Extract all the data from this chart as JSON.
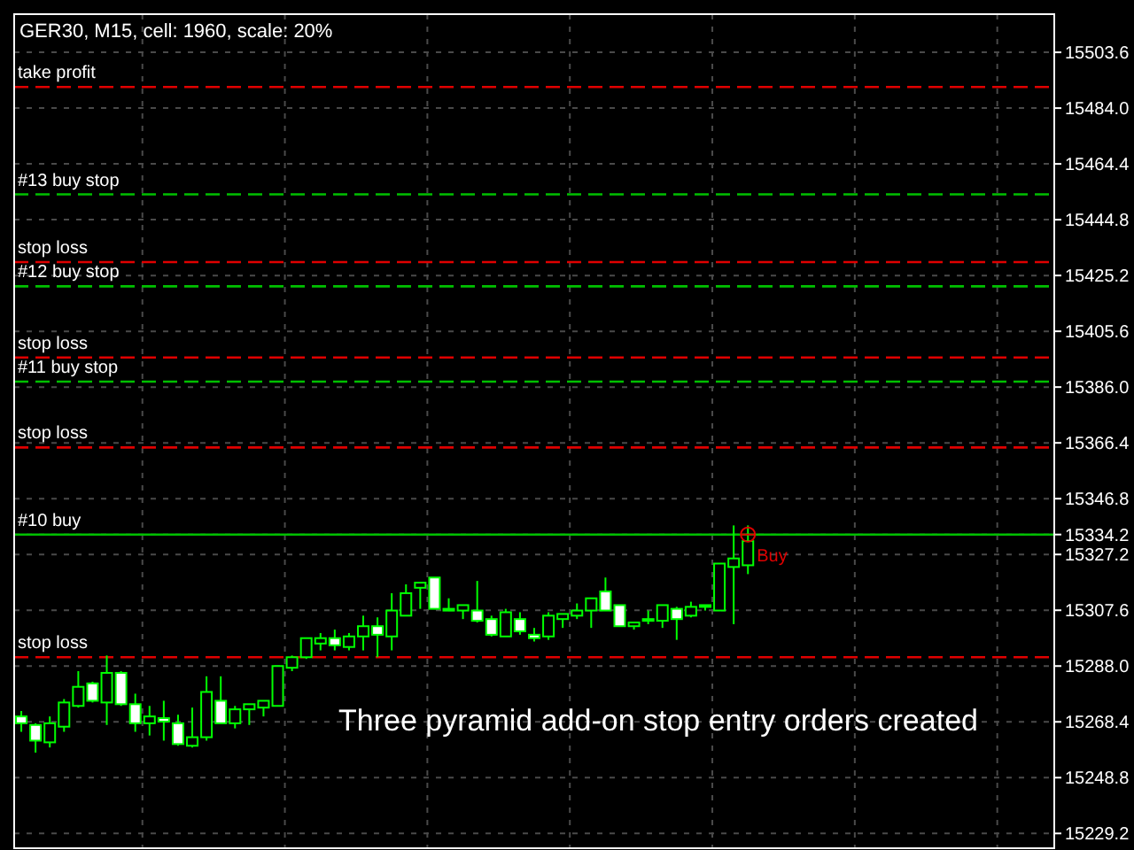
{
  "chart_data": {
    "type": "candlestick",
    "title": "GER30, M15, cell: 1960, scale: 20%",
    "categories": [
      null,
      null,
      null,
      null,
      null,
      null,
      null,
      null,
      null,
      null,
      null,
      null,
      null,
      null,
      null,
      null,
      null,
      null,
      null,
      null,
      null,
      null,
      null,
      null,
      null,
      null,
      null,
      null,
      null,
      null,
      null,
      null,
      null,
      null,
      null,
      null,
      null,
      null,
      null,
      null,
      null,
      null,
      null,
      null,
      null,
      null,
      null,
      null,
      null,
      null,
      null,
      null,
      null,
      null,
      null,
      null,
      null,
      null,
      null,
      null,
      null,
      null,
      null,
      null,
      null,
      null,
      null,
      null,
      null,
      null,
      null,
      null,
      null
    ],
    "series": [
      {
        "color": "#00ff00",
        "ohlc": [
          [
            15270.3,
            15272.2,
            15264.9,
            15267.9
          ],
          [
            15267.3,
            15267.9,
            15257.6,
            15261.8
          ],
          [
            15261.2,
            15270.3,
            15259.4,
            15267.9
          ],
          [
            15266.7,
            15276.4,
            15264.9,
            15275.2
          ],
          [
            15274.0,
            15286.2,
            15273.4,
            15280.7
          ],
          [
            15281.9,
            15282.5,
            15275.2,
            15275.8
          ],
          [
            15275.2,
            15291.7,
            15267.3,
            15285.6
          ],
          [
            15285.6,
            15286.2,
            15274.0,
            15274.6
          ],
          [
            15274.6,
            15278.3,
            15264.9,
            15267.9
          ],
          [
            15267.9,
            15274.0,
            15263.6,
            15270.3
          ],
          [
            15269.7,
            15275.8,
            15261.8,
            15268.5
          ],
          [
            15267.9,
            15270.9,
            15260.0,
            15260.6
          ],
          [
            15260.0,
            15273.4,
            15259.4,
            15263.0
          ],
          [
            15263.0,
            15284.4,
            15261.8,
            15278.9
          ],
          [
            15275.8,
            15284.4,
            15267.9,
            15267.9
          ],
          [
            15267.9,
            15274.0,
            15266.1,
            15272.8
          ],
          [
            15272.8,
            15274.6,
            15267.3,
            15274.6
          ],
          [
            15273.4,
            15275.8,
            15270.3,
            15275.8
          ],
          [
            15274.0,
            15288.0,
            15274.0,
            15288.0
          ],
          [
            15287.4,
            15291.7,
            15286.2,
            15291.1
          ],
          [
            15291.1,
            15297.8,
            15290.5,
            15297.8
          ],
          [
            15295.9,
            15299.6,
            15293.5,
            15297.8
          ],
          [
            15297.8,
            15300.8,
            15293.5,
            15295.3
          ],
          [
            15294.7,
            15299.6,
            15293.5,
            15298.4
          ],
          [
            15298.4,
            15305.7,
            15293.5,
            15302.0
          ],
          [
            15302.0,
            15305.1,
            15291.1,
            15299.0
          ],
          [
            15298.4,
            15313.6,
            15293.5,
            15307.5
          ],
          [
            15305.7,
            15316.7,
            15305.7,
            15313.6
          ],
          [
            15315.5,
            15317.3,
            15308.1,
            15317.3
          ],
          [
            15319.1,
            15319.1,
            15308.1,
            15308.1
          ],
          [
            15307.5,
            15311.8,
            15307.5,
            15308.1
          ],
          [
            15307.5,
            15309.4,
            15304.5,
            15309.4
          ],
          [
            15307.5,
            15317.9,
            15303.3,
            15303.9
          ],
          [
            15304.5,
            15305.7,
            15298.4,
            15299.0
          ],
          [
            15298.4,
            15308.1,
            15298.4,
            15306.9
          ],
          [
            15304.5,
            15306.9,
            15299.0,
            15300.2
          ],
          [
            15299.0,
            15301.4,
            15296.6,
            15297.8
          ],
          [
            15298.4,
            15306.9,
            15297.2,
            15305.7
          ],
          [
            15304.5,
            15306.3,
            15301.4,
            15306.3
          ],
          [
            15305.7,
            15310.0,
            15304.5,
            15307.5
          ],
          [
            15307.5,
            15311.8,
            15301.4,
            15311.8
          ],
          [
            15314.2,
            15319.1,
            15307.5,
            15307.5
          ],
          [
            15309.4,
            15309.4,
            15302.0,
            15302.0
          ],
          [
            15302.0,
            15303.3,
            15300.8,
            15303.3
          ],
          [
            15303.9,
            15307.5,
            15302.7,
            15304.5
          ],
          [
            15303.9,
            15309.4,
            15301.4,
            15309.4
          ],
          [
            15308.1,
            15308.8,
            15297.2,
            15304.5
          ],
          [
            15305.7,
            15310.6,
            15305.1,
            15308.8
          ],
          [
            15308.8,
            15309.4,
            15307.5,
            15309.4
          ],
          [
            15307.5,
            15324.0,
            15307.5,
            15324.0
          ],
          [
            15322.8,
            15337.4,
            15302.7,
            15325.8
          ],
          [
            15323.4,
            15337.4,
            15320.3,
            15331.9
          ],
          null,
          null,
          null,
          null,
          null,
          null,
          null,
          null,
          null,
          null,
          null,
          null,
          null,
          null,
          null,
          null,
          null,
          null,
          null,
          null,
          null
        ]
      }
    ],
    "ylim": [
      15224.0,
      15517.0
    ],
    "yticks": [
      15503.6,
      {
        "value": 15484,
        "label": "15484.0"
      },
      15464.4,
      15444.8,
      15425.2,
      15405.6,
      {
        "value": 15386,
        "label": "15386.0"
      },
      15366.4,
      15346.8,
      15334.2,
      15327.2,
      15307.6,
      {
        "value": 15288,
        "label": "15288.0"
      },
      15268.4,
      15248.8,
      15229.2
    ],
    "grid": true,
    "ref_lines": [
      {
        "axis": "y",
        "value": 15491.4,
        "label": "take profit",
        "color": "#e00000",
        "line_style": "dashed"
      },
      {
        "axis": "y",
        "value": 15453.7,
        "label": "#13 buy stop",
        "color": "#00c000",
        "line_style": "dashed"
      },
      {
        "axis": "y",
        "value": 15429.9,
        "label": "stop loss",
        "color": "#e00000",
        "line_style": "dashed"
      },
      {
        "axis": "y",
        "value": 15421.4,
        "label": "#12 buy stop",
        "color": "#00c000",
        "line_style": "dashed"
      },
      {
        "axis": "y",
        "value": 15396.4,
        "label": "stop loss",
        "color": "#e00000",
        "line_style": "dashed"
      },
      {
        "axis": "y",
        "value": 15387.9,
        "label": "#11 buy stop",
        "color": "#00c000",
        "line_style": "dashed"
      },
      {
        "axis": "y",
        "value": 15364.8,
        "label": "stop loss",
        "color": "#e00000",
        "line_style": "dashed"
      },
      {
        "axis": "y",
        "value": 15334.2,
        "label": "#10 buy",
        "color": "#00c000",
        "line_style": "solid"
      },
      {
        "axis": "y",
        "value": 15291.1,
        "label": "stop loss",
        "color": "#e00000",
        "line_style": "dashed"
      }
    ],
    "annotations": [
      {
        "text": "Buy",
        "y": 15334.2
      },
      "Three pyramid add-on stop entry orders created"
    ]
  }
}
